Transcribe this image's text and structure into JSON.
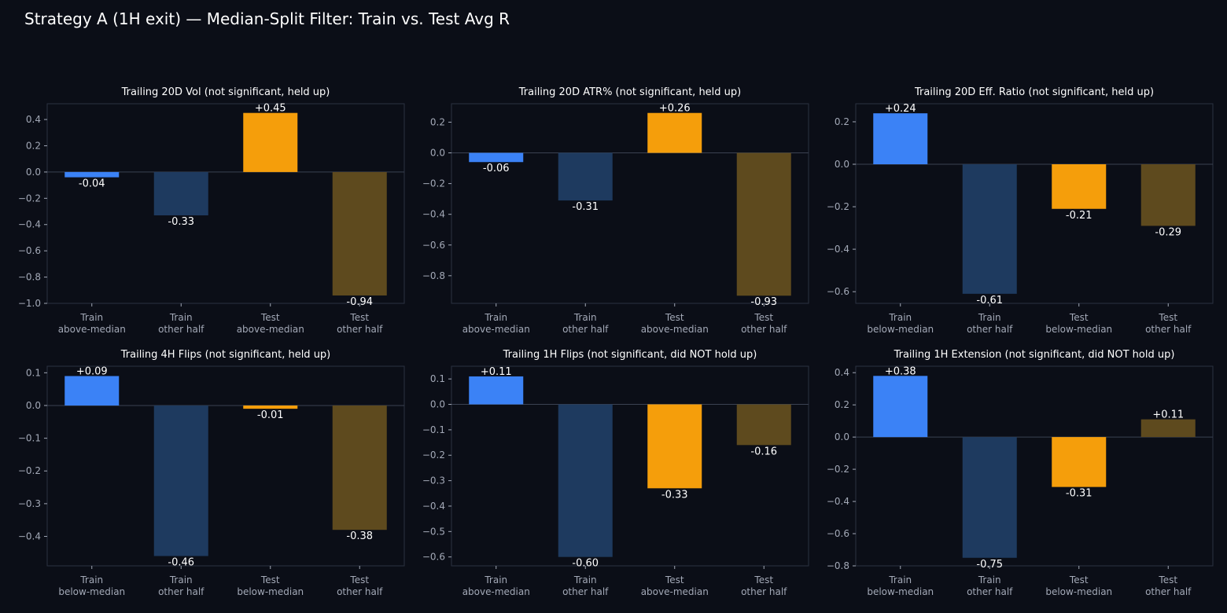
{
  "title": "Strategy A (1H exit) — Median-Split Filter: Train vs. Test Avg R",
  "colors": [
    "#3b82f6",
    "#1e3a5f",
    "#f59e0b",
    "#5e4a1e"
  ],
  "chart_data": [
    {
      "type": "bar",
      "title": "Trailing 20D Vol (not significant, held up)",
      "categories": [
        [
          "Train",
          "above-median"
        ],
        [
          "Train",
          "other half"
        ],
        [
          "Test",
          "above-median"
        ],
        [
          "Test",
          "other half"
        ]
      ],
      "values": [
        -0.04,
        -0.33,
        0.45,
        -0.94
      ],
      "value_labels": [
        "-0.04",
        "-0.33",
        "+0.45",
        "-0.94"
      ],
      "ylim": [
        -1.0,
        0.52
      ],
      "yticks": [
        0.4,
        0.2,
        0.0,
        -0.2,
        -0.4,
        -0.6,
        -0.8,
        -1.0
      ],
      "ytick_labels": [
        "0.4",
        "0.2",
        "0.0",
        "−0.2",
        "−0.4",
        "−0.6",
        "−0.8",
        "−1.0"
      ]
    },
    {
      "type": "bar",
      "title": "Trailing 20D ATR% (not significant, held up)",
      "categories": [
        [
          "Train",
          "above-median"
        ],
        [
          "Train",
          "other half"
        ],
        [
          "Test",
          "above-median"
        ],
        [
          "Test",
          "other half"
        ]
      ],
      "values": [
        -0.06,
        -0.31,
        0.26,
        -0.93
      ],
      "value_labels": [
        "-0.06",
        "-0.31",
        "+0.26",
        "-0.93"
      ],
      "ylim": [
        -0.98,
        0.32
      ],
      "yticks": [
        0.2,
        0.0,
        -0.2,
        -0.4,
        -0.6,
        -0.8
      ],
      "ytick_labels": [
        "0.2",
        "0.0",
        "−0.2",
        "−0.4",
        "−0.6",
        "−0.8"
      ]
    },
    {
      "type": "bar",
      "title": "Trailing 20D Eff. Ratio (not significant, held up)",
      "categories": [
        [
          "Train",
          "below-median"
        ],
        [
          "Train",
          "other half"
        ],
        [
          "Test",
          "below-median"
        ],
        [
          "Test",
          "other half"
        ]
      ],
      "values": [
        0.24,
        -0.61,
        -0.21,
        -0.29
      ],
      "value_labels": [
        "+0.24",
        "-0.61",
        "-0.21",
        "-0.29"
      ],
      "ylim": [
        -0.655,
        0.285
      ],
      "yticks": [
        0.2,
        0.0,
        -0.2,
        -0.4,
        -0.6
      ],
      "ytick_labels": [
        "0.2",
        "0.0",
        "−0.2",
        "−0.4",
        "−0.6"
      ]
    },
    {
      "type": "bar",
      "title": "Trailing 4H Flips (not significant, held up)",
      "categories": [
        [
          "Train",
          "below-median"
        ],
        [
          "Train",
          "other half"
        ],
        [
          "Test",
          "below-median"
        ],
        [
          "Test",
          "other half"
        ]
      ],
      "values": [
        0.09,
        -0.46,
        -0.01,
        -0.38
      ],
      "value_labels": [
        "+0.09",
        "-0.46",
        "-0.01",
        "-0.38"
      ],
      "ylim": [
        -0.49,
        0.12
      ],
      "yticks": [
        0.1,
        0.0,
        -0.1,
        -0.2,
        -0.3,
        -0.4
      ],
      "ytick_labels": [
        "0.1",
        "0.0",
        "−0.1",
        "−0.2",
        "−0.3",
        "−0.4"
      ]
    },
    {
      "type": "bar",
      "title": "Trailing 1H Flips (not significant, did NOT hold up)",
      "categories": [
        [
          "Train",
          "above-median"
        ],
        [
          "Train",
          "other half"
        ],
        [
          "Test",
          "above-median"
        ],
        [
          "Test",
          "other half"
        ]
      ],
      "values": [
        0.11,
        -0.6,
        -0.33,
        -0.16
      ],
      "value_labels": [
        "+0.11",
        "-0.60",
        "-0.33",
        "-0.16"
      ],
      "ylim": [
        -0.635,
        0.15
      ],
      "yticks": [
        0.1,
        0.0,
        -0.1,
        -0.2,
        -0.3,
        -0.4,
        -0.5,
        -0.6
      ],
      "ytick_labels": [
        "0.1",
        "0.0",
        "−0.1",
        "−0.2",
        "−0.3",
        "−0.4",
        "−0.5",
        "−0.6"
      ]
    },
    {
      "type": "bar",
      "title": "Trailing 1H Extension (not significant, did NOT hold up)",
      "categories": [
        [
          "Train",
          "below-median"
        ],
        [
          "Train",
          "other half"
        ],
        [
          "Test",
          "below-median"
        ],
        [
          "Test",
          "other half"
        ]
      ],
      "values": [
        0.38,
        -0.75,
        -0.31,
        0.11
      ],
      "value_labels": [
        "+0.38",
        "-0.75",
        "-0.31",
        "+0.11"
      ],
      "ylim": [
        -0.8,
        0.44
      ],
      "yticks": [
        0.4,
        0.2,
        0.0,
        -0.2,
        -0.4,
        -0.6,
        -0.8
      ],
      "ytick_labels": [
        "0.4",
        "0.2",
        "0.0",
        "−0.2",
        "−0.4",
        "−0.6",
        "−0.8"
      ]
    }
  ]
}
